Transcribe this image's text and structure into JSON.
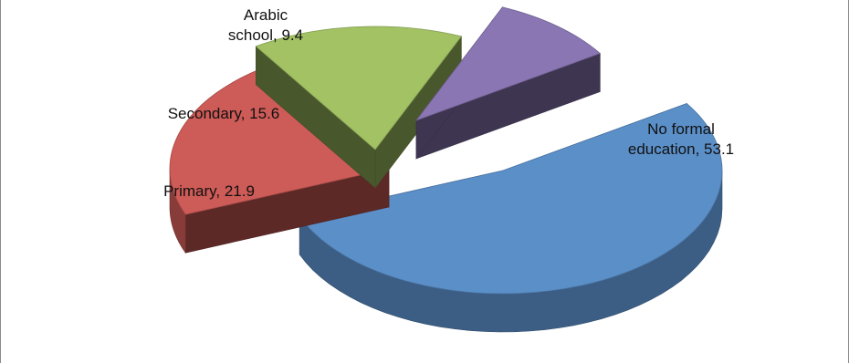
{
  "chart_data": {
    "type": "pie",
    "title": "",
    "labels": [
      "No formal education",
      "Primary",
      "Secondary",
      "Arabic school"
    ],
    "values": [
      53.1,
      21.9,
      15.6,
      9.4
    ],
    "colors": [
      "#5b8fc8",
      "#cd5b57",
      "#a2c264",
      "#8a76b3"
    ],
    "data_labels": [
      [
        "No formal",
        "education, 53.1"
      ],
      [
        "Primary, 21.9"
      ],
      [
        "Secondary, 15.6"
      ],
      [
        "Arabic",
        "school, 9.4"
      ]
    ],
    "exploded": true,
    "three_d": true,
    "legend": "none"
  }
}
